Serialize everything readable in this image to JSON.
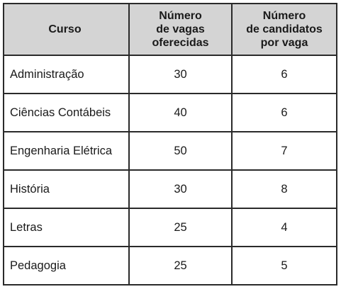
{
  "header": {
    "course": "Curso",
    "vacancies": [
      "Número",
      "de vagas",
      "oferecidas"
    ],
    "candidates": [
      "Número",
      "de candidatos",
      "por vaga"
    ]
  },
  "rows": [
    {
      "course": "Administração",
      "vacancies": "30",
      "candidates": "6"
    },
    {
      "course": "Ciências Contábeis",
      "vacancies": "40",
      "candidates": "6"
    },
    {
      "course": "Engenharia Elétrica",
      "vacancies": "50",
      "candidates": "7"
    },
    {
      "course": "História",
      "vacancies": "30",
      "candidates": "8"
    },
    {
      "course": "Letras",
      "vacancies": "25",
      "candidates": "4"
    },
    {
      "course": "Pedagogia",
      "vacancies": "25",
      "candidates": "5"
    }
  ]
}
